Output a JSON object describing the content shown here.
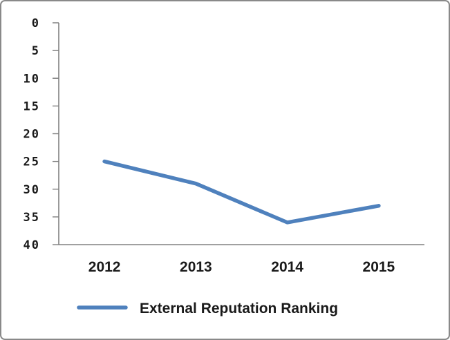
{
  "chart_data": {
    "type": "line",
    "categories": [
      "2012",
      "2013",
      "2014",
      "2015"
    ],
    "series": [
      {
        "name": "External Reputation Ranking",
        "values": [
          25,
          29,
          36,
          33
        ],
        "color": "#4f81bd"
      }
    ],
    "title": "",
    "xlabel": "",
    "ylabel": "",
    "ylim": [
      0,
      40
    ],
    "y_axis_inverted": true,
    "yticks": [
      0,
      5,
      10,
      15,
      20,
      25,
      30,
      35,
      40
    ],
    "grid": false,
    "legend_position": "bottom"
  },
  "legend": {
    "label": "External Reputation Ranking"
  },
  "colors": {
    "series_line": "#4f81bd",
    "axis": "#808080",
    "text": "#1a1a1a",
    "frame_border": "#898989"
  }
}
